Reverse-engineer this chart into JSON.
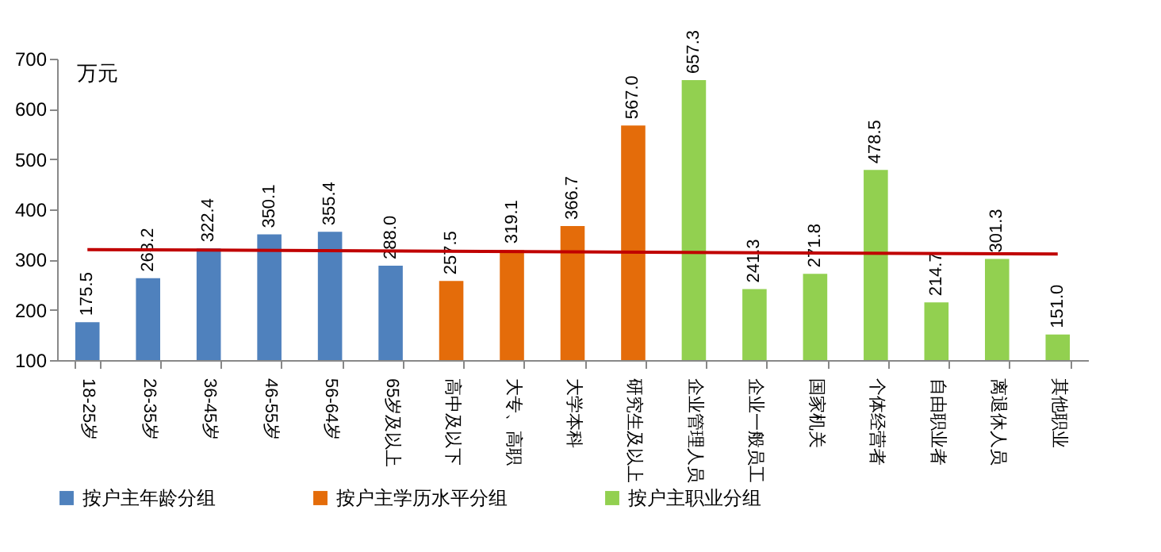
{
  "chart_data": {
    "type": "bar",
    "ylabel": "万元",
    "categories": [
      "18-25岁",
      "26-35岁",
      "36-45岁",
      "46-55岁",
      "56-64岁",
      "65岁及以上",
      "高中及以下",
      "大专、高职",
      "大学本科",
      "研究生及以上",
      "企业管理人员",
      "企业一般员工",
      "国家机关",
      "个体经营者",
      "自由职业者",
      "离退休人员",
      "其他职业"
    ],
    "series": [
      {
        "name": "按户主年龄分组",
        "color": "#4f81bd",
        "values": [
          175.5,
          263.2,
          322.4,
          350.1,
          355.4,
          288.0,
          null,
          null,
          null,
          null,
          null,
          null,
          null,
          null,
          null,
          null,
          null
        ],
        "value_labels": [
          "175.5",
          "263.2",
          "322.4",
          "350.1",
          "355.4",
          "288.0",
          null,
          null,
          null,
          null,
          null,
          null,
          null,
          null,
          null,
          null,
          null
        ]
      },
      {
        "name": "按户主学历水平分组",
        "color": "#e46c0a",
        "values": [
          null,
          null,
          null,
          null,
          null,
          null,
          257.5,
          319.1,
          366.7,
          567.0,
          null,
          null,
          null,
          null,
          null,
          null,
          null
        ],
        "value_labels": [
          null,
          null,
          null,
          null,
          null,
          null,
          "257.5",
          "319.1",
          "366.7",
          "567.0",
          null,
          null,
          null,
          null,
          null,
          null,
          null
        ]
      },
      {
        "name": "按户主职业分组",
        "color": "#92d050",
        "values": [
          null,
          null,
          null,
          null,
          null,
          null,
          null,
          null,
          null,
          null,
          657.3,
          241.3,
          271.8,
          478.5,
          214.7,
          301.3,
          151.0
        ],
        "value_labels": [
          null,
          null,
          null,
          null,
          null,
          null,
          null,
          null,
          null,
          null,
          "657.3",
          "241.3",
          "271.8",
          "478.5",
          "214.7",
          "301.3",
          "151.0"
        ]
      },
      {
        "type": "line",
        "color": "#c00000",
        "x": [
          "18-25岁",
          "其他职业"
        ],
        "values": [
          320,
          311
        ]
      }
    ],
    "ylim": [
      100,
      700
    ],
    "yticks": [
      100,
      200,
      300,
      400,
      500,
      600,
      700
    ],
    "grid": false,
    "legend": "bottom"
  }
}
